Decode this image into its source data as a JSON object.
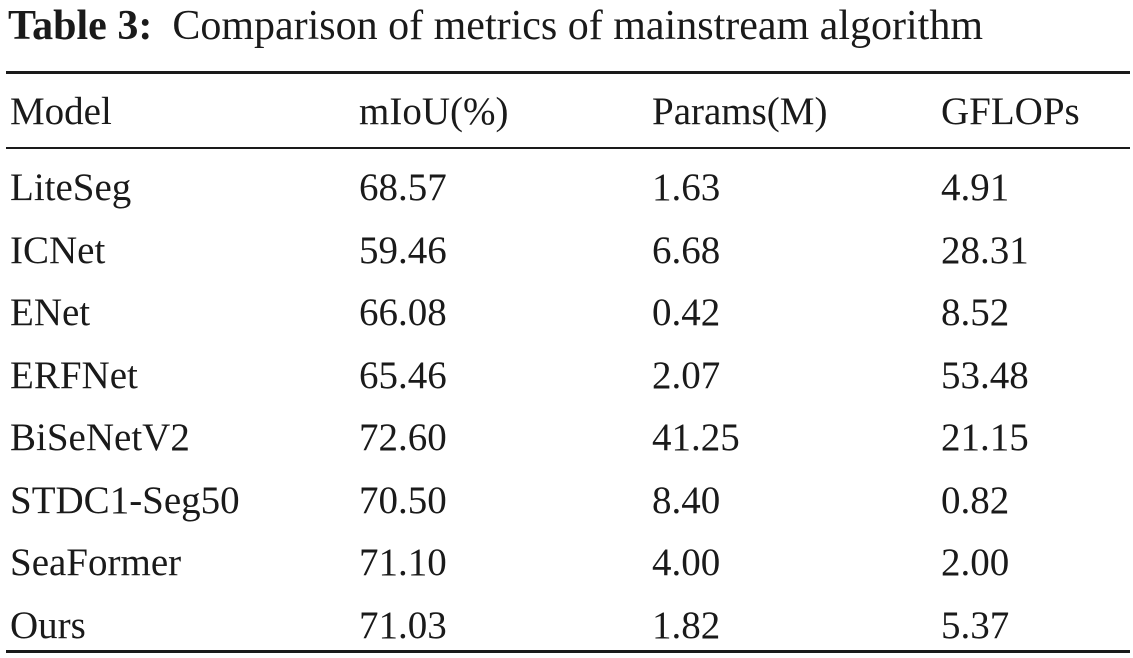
{
  "caption": {
    "label": "Table 3:",
    "text": "Comparison of metrics of mainstream algorithm"
  },
  "table": {
    "headers": [
      "Model",
      "mIoU(%)",
      "Params(M)",
      "GFLOPs"
    ],
    "rows": [
      [
        "LiteSeg",
        "68.57",
        "1.63",
        "4.91"
      ],
      [
        "ICNet",
        "59.46",
        "6.68",
        "28.31"
      ],
      [
        "ENet",
        "66.08",
        "0.42",
        "8.52"
      ],
      [
        "ERFNet",
        "65.46",
        "2.07",
        "53.48"
      ],
      [
        "BiSeNetV2",
        "72.60",
        "41.25",
        "21.15"
      ],
      [
        "STDC1-Seg50",
        "70.50",
        "8.40",
        "0.82"
      ],
      [
        "SeaFormer",
        "71.10",
        "4.00",
        "2.00"
      ],
      [
        "Ours",
        "71.03",
        "1.82",
        "5.37"
      ]
    ]
  }
}
